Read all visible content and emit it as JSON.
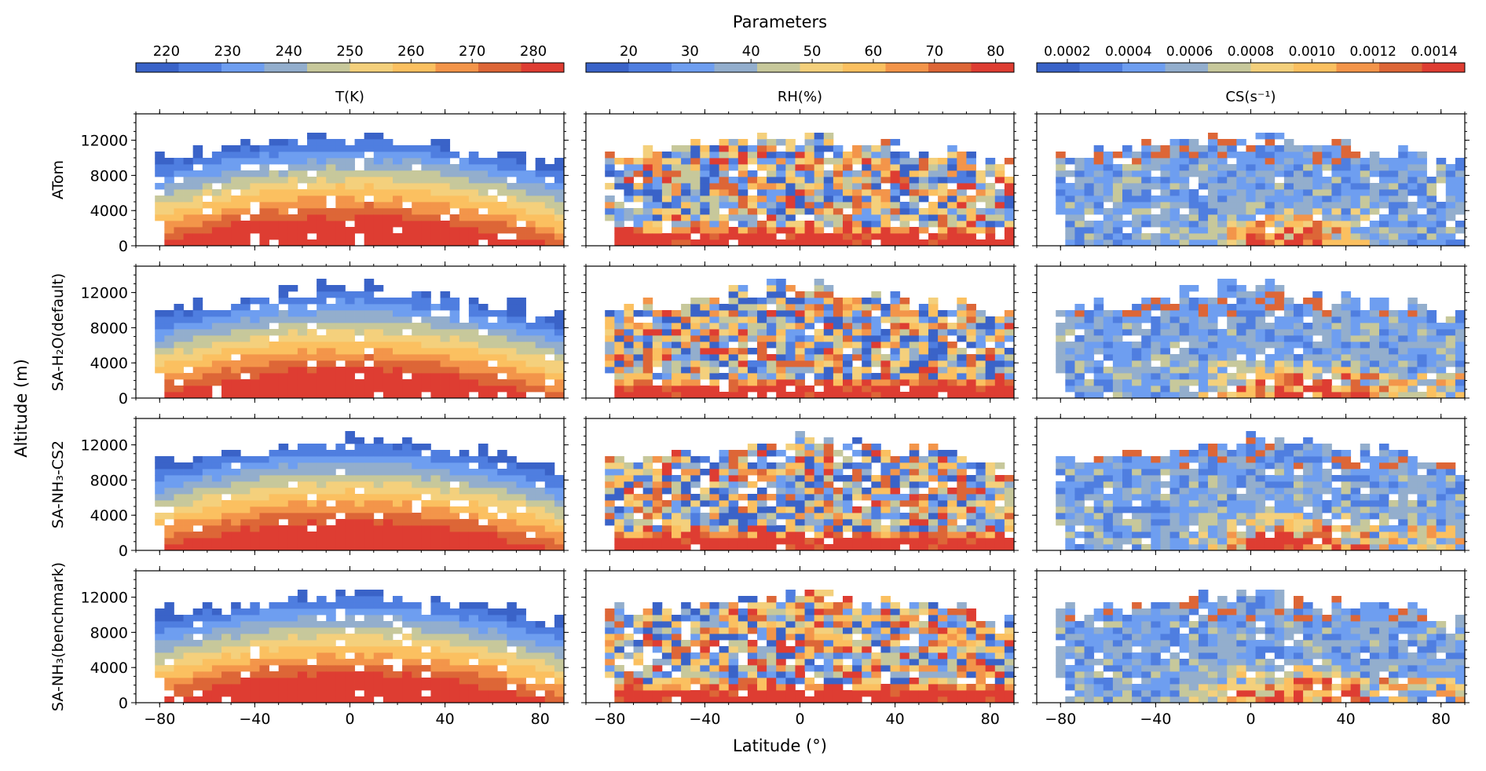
{
  "figure": {
    "suptitle": "Parameters",
    "xlabel": "Latitude (°)",
    "ylabel": "Altitude (m)"
  },
  "colormap": [
    "#3a63c8",
    "#4f7ee0",
    "#6e9ef0",
    "#93aecd",
    "#c7c89b",
    "#f4d07c",
    "#fbc060",
    "#f3954a",
    "#dd6637",
    "#de3d32"
  ],
  "chart_data": {
    "type": "heatmap",
    "x_ticks": [
      -80,
      -40,
      0,
      40,
      80
    ],
    "x_tick_labels": [
      "−80",
      "−40",
      "0",
      "40",
      "80"
    ],
    "xlim": [
      -90,
      90
    ],
    "y_ticks": [
      0,
      4000,
      8000,
      12000
    ],
    "y_tick_labels": [
      "0",
      "4000",
      "8000",
      "12000"
    ],
    "ylim": [
      0,
      15000
    ],
    "grid": false,
    "row_labels": [
      "ATom",
      "SA-H₂O(default)",
      "SA-NH₃-CS2",
      "SA-NH₃(benchmark)"
    ],
    "parameters": [
      {
        "key": "T",
        "title": "T(K)",
        "colorbar_ticks": [
          220,
          230,
          240,
          250,
          260,
          270,
          280
        ],
        "colorbar_tick_labels": [
          "220",
          "230",
          "240",
          "250",
          "260",
          "270",
          "280"
        ],
        "range": [
          215,
          285
        ],
        "pattern": "temperature"
      },
      {
        "key": "RH",
        "title": "RH(%)",
        "colorbar_ticks": [
          20,
          30,
          40,
          50,
          60,
          70,
          80
        ],
        "colorbar_tick_labels": [
          "20",
          "30",
          "40",
          "50",
          "60",
          "70",
          "80"
        ],
        "range": [
          13,
          83
        ],
        "pattern": "humidity"
      },
      {
        "key": "CS",
        "title": "CS(s⁻¹)",
        "colorbar_ticks": [
          0.0002,
          0.0004,
          0.0006,
          0.0008,
          0.001,
          0.0012,
          0.0014
        ],
        "colorbar_tick_labels": [
          "0.0002",
          "0.0004",
          "0.0006",
          "0.0008",
          "0.0010",
          "0.0012",
          "0.0014"
        ],
        "range": [
          0.0001,
          0.0015
        ],
        "pattern": "condensation_sink"
      }
    ],
    "grid_cells": {
      "lat_bins": 45,
      "alt_bins": 21,
      "lat_range": [
        -90,
        90
      ],
      "alt_range": [
        0,
        15000
      ]
    }
  }
}
